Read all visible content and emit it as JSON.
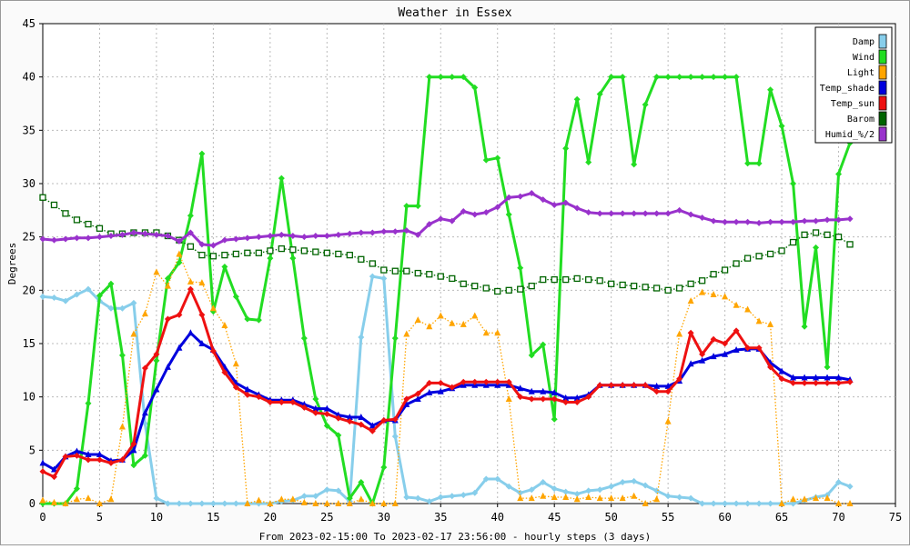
{
  "chart_data": {
    "type": "line",
    "title": "Weather in Essex",
    "xlabel": "From 2023-02-15:00 To 2023-02-17 23:56:00 - hourly steps (3 days)",
    "ylabel": "Degrees",
    "xlim": [
      0,
      75
    ],
    "ylim": [
      0,
      45
    ],
    "x_ticks": [
      0,
      5,
      10,
      15,
      20,
      25,
      30,
      35,
      40,
      45,
      50,
      55,
      60,
      65,
      70,
      75
    ],
    "y_ticks": [
      0,
      5,
      10,
      15,
      20,
      25,
      30,
      35,
      40,
      45
    ],
    "grid": true,
    "legend_position": "top-right",
    "x": [
      0,
      1,
      2,
      3,
      4,
      5,
      6,
      7,
      8,
      9,
      10,
      11,
      12,
      13,
      14,
      15,
      16,
      17,
      18,
      19,
      20,
      21,
      22,
      23,
      24,
      25,
      26,
      27,
      28,
      29,
      30,
      31,
      32,
      33,
      34,
      35,
      36,
      37,
      38,
      39,
      40,
      41,
      42,
      43,
      44,
      45,
      46,
      47,
      48,
      49,
      50,
      51,
      52,
      53,
      54,
      55,
      56,
      57,
      58,
      59,
      60,
      61,
      62,
      63,
      64,
      65,
      66,
      67,
      68,
      69,
      70,
      71
    ],
    "series": [
      {
        "name": "Damp",
        "color": "#87ceeb",
        "marker": "diamond",
        "style": "solid",
        "values": [
          19.4,
          19.3,
          19.0,
          19.6,
          20.1,
          19.0,
          18.3,
          18.3,
          18.8,
          7.5,
          0.5,
          0.0,
          0.0,
          0.0,
          0.0,
          0.0,
          0.0,
          0.0,
          0.0,
          0.0,
          0.0,
          0.2,
          0.3,
          0.7,
          0.7,
          1.3,
          1.2,
          0.2,
          15.6,
          21.3,
          21.1,
          6.3,
          0.6,
          0.5,
          0.2,
          0.6,
          0.7,
          0.8,
          1.0,
          2.3,
          2.3,
          1.6,
          1.0,
          1.3,
          2.0,
          1.4,
          1.1,
          0.9,
          1.2,
          1.3,
          1.6,
          2.0,
          2.1,
          1.7,
          1.2,
          0.7,
          0.6,
          0.5,
          0.0,
          0.0,
          0.0,
          0.0,
          0.0,
          0.0,
          0.0,
          0.0,
          0.0,
          0.3,
          0.6,
          0.8,
          2.0,
          1.6
        ]
      },
      {
        "name": "Wind",
        "color": "#22dd22",
        "marker": "diamond",
        "style": "solid",
        "values": [
          0.0,
          0.0,
          0.0,
          1.4,
          9.4,
          19.5,
          20.6,
          13.9,
          3.6,
          4.5,
          13.4,
          21.1,
          22.6,
          27.0,
          32.8,
          18.0,
          22.2,
          19.4,
          17.3,
          17.2,
          23.0,
          30.5,
          23.0,
          15.5,
          9.8,
          7.3,
          6.4,
          0.5,
          2.0,
          0.0,
          3.4,
          15.5,
          27.9,
          27.9,
          40.0,
          40.0,
          40.0,
          40.0,
          39.0,
          32.2,
          32.4,
          27.1,
          22.1,
          13.9,
          14.9,
          7.9,
          33.3,
          37.9,
          32.0,
          38.4,
          40.0,
          40.0,
          31.8,
          37.4,
          40.0,
          40.0,
          40.0,
          40.0,
          40.0,
          40.0,
          40.0,
          40.0,
          31.9,
          31.9,
          38.8,
          35.4,
          30.0,
          16.6,
          24.0,
          12.8,
          30.9,
          33.8
        ]
      },
      {
        "name": "Light",
        "color": "#ffa500",
        "marker": "triangle",
        "style": "dotted",
        "values": [
          0.3,
          0.1,
          0.0,
          0.4,
          0.5,
          0.0,
          0.4,
          7.2,
          15.9,
          17.8,
          21.7,
          20.4,
          23.4,
          20.8,
          20.7,
          18.3,
          16.7,
          13.1,
          0.0,
          0.3,
          0.0,
          0.4,
          0.4,
          0.1,
          0.0,
          0.0,
          0.0,
          0.0,
          0.4,
          0.0,
          0.0,
          0.0,
          15.9,
          17.2,
          16.6,
          17.6,
          16.9,
          16.8,
          17.6,
          16.0,
          16.0,
          9.8,
          0.5,
          0.5,
          0.7,
          0.6,
          0.6,
          0.4,
          0.6,
          0.5,
          0.5,
          0.5,
          0.7,
          0.0,
          0.4,
          7.7,
          15.9,
          19.0,
          19.8,
          19.6,
          19.4,
          18.6,
          18.2,
          17.1,
          16.8,
          0.0,
          0.4,
          0.4,
          0.5,
          0.5,
          0.0,
          0.0
        ]
      },
      {
        "name": "Temp_shade",
        "color": "#0000dd",
        "marker": "triangle",
        "style": "solid",
        "values": [
          3.8,
          3.2,
          4.4,
          4.9,
          4.6,
          4.6,
          4.0,
          4.1,
          5.0,
          8.5,
          10.7,
          12.8,
          14.6,
          16.0,
          15.0,
          14.4,
          12.8,
          11.3,
          10.7,
          10.2,
          9.7,
          9.7,
          9.7,
          9.3,
          8.9,
          8.9,
          8.3,
          8.1,
          8.1,
          7.3,
          7.8,
          7.8,
          9.3,
          9.8,
          10.4,
          10.5,
          10.8,
          11.1,
          11.1,
          11.1,
          11.1,
          11.1,
          10.8,
          10.5,
          10.5,
          10.4,
          9.9,
          9.9,
          10.2,
          11.1,
          11.1,
          11.1,
          11.1,
          11.1,
          11.0,
          11.0,
          11.5,
          13.1,
          13.4,
          13.8,
          14.0,
          14.4,
          14.5,
          14.5,
          13.2,
          12.4,
          11.8,
          11.8,
          11.8,
          11.8,
          11.8,
          11.6
        ]
      },
      {
        "name": "Temp_sun",
        "color": "#ee1111",
        "marker": "diamond",
        "style": "solid",
        "values": [
          3.0,
          2.5,
          4.4,
          4.5,
          4.1,
          4.1,
          3.8,
          4.1,
          5.6,
          12.7,
          14.0,
          17.3,
          17.7,
          20.1,
          17.7,
          14.3,
          12.3,
          10.9,
          10.2,
          10.0,
          9.5,
          9.5,
          9.5,
          9.0,
          8.5,
          8.4,
          8.0,
          7.7,
          7.4,
          6.8,
          7.8,
          7.9,
          9.8,
          10.3,
          11.3,
          11.3,
          10.9,
          11.4,
          11.4,
          11.4,
          11.4,
          11.4,
          10.0,
          9.8,
          9.8,
          9.8,
          9.5,
          9.5,
          10.0,
          11.1,
          11.1,
          11.1,
          11.1,
          11.1,
          10.5,
          10.5,
          11.7,
          16.0,
          14.0,
          15.4,
          15.0,
          16.2,
          14.6,
          14.6,
          12.8,
          11.7,
          11.3,
          11.3,
          11.3,
          11.3,
          11.3,
          11.4
        ]
      },
      {
        "name": "Barom",
        "color": "#006400",
        "marker": "square",
        "style": "dotted",
        "values": [
          28.7,
          28.0,
          27.2,
          26.6,
          26.2,
          25.8,
          25.3,
          25.3,
          25.4,
          25.4,
          25.4,
          25.1,
          24.7,
          24.1,
          23.3,
          23.2,
          23.3,
          23.4,
          23.5,
          23.5,
          23.7,
          23.9,
          23.8,
          23.7,
          23.6,
          23.5,
          23.4,
          23.3,
          22.9,
          22.5,
          21.9,
          21.8,
          21.8,
          21.6,
          21.5,
          21.3,
          21.1,
          20.6,
          20.4,
          20.2,
          19.9,
          20.0,
          20.1,
          20.4,
          21.0,
          21.0,
          21.0,
          21.1,
          21.0,
          20.9,
          20.6,
          20.5,
          20.4,
          20.3,
          20.2,
          20.0,
          20.2,
          20.6,
          20.9,
          21.5,
          21.9,
          22.5,
          23.0,
          23.2,
          23.4,
          23.7,
          24.5,
          25.2,
          25.4,
          25.2,
          25.0,
          24.3
        ]
      },
      {
        "name": "Humid_%/2",
        "color": "#9932cc",
        "marker": "diamond",
        "style": "solid",
        "values": [
          24.8,
          24.7,
          24.8,
          24.9,
          24.9,
          25.0,
          25.1,
          25.2,
          25.4,
          25.3,
          25.2,
          25.1,
          24.6,
          25.4,
          24.3,
          24.2,
          24.7,
          24.8,
          24.9,
          25.0,
          25.1,
          25.2,
          25.1,
          25.0,
          25.1,
          25.1,
          25.2,
          25.3,
          25.4,
          25.4,
          25.5,
          25.5,
          25.6,
          25.2,
          26.2,
          26.7,
          26.5,
          27.4,
          27.1,
          27.3,
          27.8,
          28.7,
          28.8,
          29.1,
          28.5,
          28.0,
          28.2,
          27.7,
          27.3,
          27.2,
          27.2,
          27.2,
          27.2,
          27.2,
          27.2,
          27.2,
          27.5,
          27.1,
          26.8,
          26.5,
          26.4,
          26.4,
          26.4,
          26.3,
          26.4,
          26.4,
          26.4,
          26.5,
          26.5,
          26.6,
          26.6,
          26.7
        ]
      }
    ]
  }
}
